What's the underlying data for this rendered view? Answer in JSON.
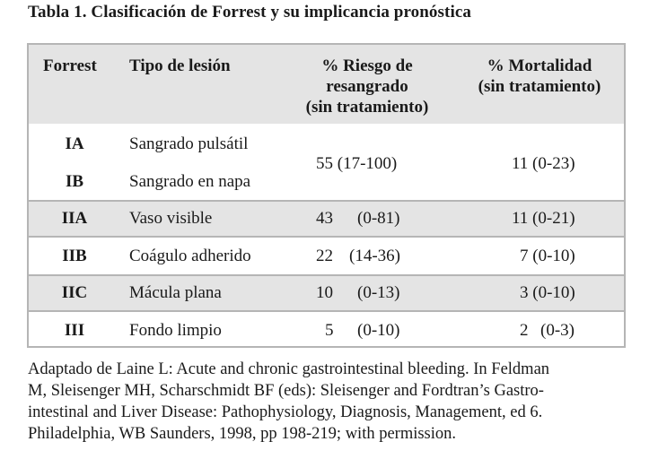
{
  "title": "Tabla 1. Clasificación de Forrest y su implicancia pronóstica",
  "headers": {
    "forrest": "Forrest",
    "lesion": "Tipo de lesión",
    "risk_l1": "% Riesgo de",
    "risk_l2": "resangrado",
    "risk_l3": "(sin tratamiento)",
    "mort_l1": "% Mortalidad",
    "mort_l2": "(sin tratamiento)"
  },
  "rows": [
    {
      "forrest": "IA",
      "lesion": "Sangrado pulsátil"
    },
    {
      "forrest": "IB",
      "lesion": "Sangrado en napa"
    },
    {
      "forrest": "IIA",
      "lesion": "Vaso visible",
      "risk": "43",
      "risk_range": "(0-81)",
      "mortality": "11 (0-21)"
    },
    {
      "forrest": "IIB",
      "lesion": "Coágulo adherido",
      "risk": "22",
      "risk_range": "(14-36)",
      "mortality": "7 (0-10)"
    },
    {
      "forrest": "IIC",
      "lesion": "Mácula plana",
      "risk": "10",
      "risk_range": "(0-13)",
      "mortality": "3 (0-10)"
    },
    {
      "forrest": "III",
      "lesion": "Fondo limpio",
      "risk": "5",
      "risk_range": "(0-10)",
      "mortality_a": "2",
      "mortality_b": "(0-3)"
    }
  ],
  "group_I": {
    "risk": "55 (17-100)",
    "mortality": "11 (0-23)"
  },
  "footnote": {
    "line1": "Adaptado de Laine L: Acute and chronic gastrointestinal bleeding. In Feldman",
    "line2": "M, Sleisenger MH, Scharschmidt BF (eds): Sleisenger and Fordtran’s Gastro-",
    "line3": "intestinal and Liver Disease: Pathophysiology, Diagnosis, Management, ed 6.",
    "line4": "Philadelphia, WB Saunders, 1998, pp 198-219; with permission."
  }
}
